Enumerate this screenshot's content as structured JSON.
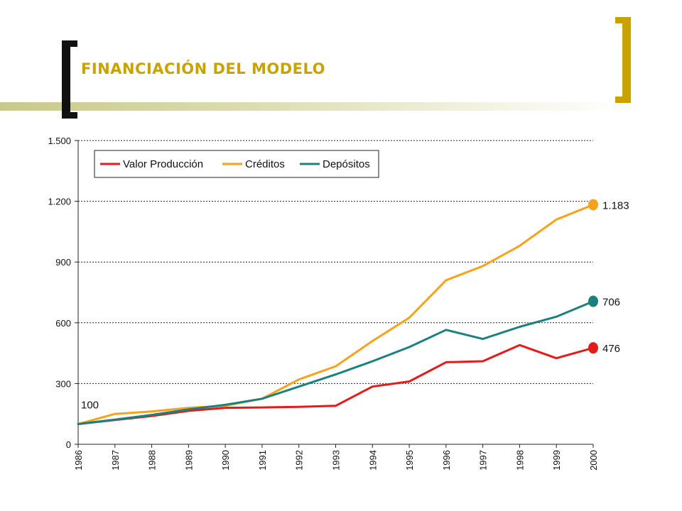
{
  "title": "FINANCIACIÓN DEL MODELO",
  "chart_data": {
    "type": "line",
    "categories": [
      "1986",
      "1987",
      "1988",
      "1989",
      "1990",
      "1991",
      "1992",
      "1993",
      "1994",
      "1995",
      "1996",
      "1997",
      "1998",
      "1999",
      "2000"
    ],
    "ylim": [
      0,
      1500
    ],
    "yticks": [
      0,
      300,
      600,
      900,
      1200,
      1500
    ],
    "ytick_labels": [
      "0",
      "300",
      "600",
      "900",
      "1.200",
      "1.500"
    ],
    "grid": "horizontal dotted",
    "legend_placement": "top-left",
    "series": [
      {
        "name": "Valor Producción",
        "color": "#e31b1b",
        "values": [
          100,
          120,
          140,
          165,
          180,
          182,
          185,
          190,
          285,
          310,
          405,
          410,
          490,
          425,
          476
        ],
        "end_label": "476"
      },
      {
        "name": "Créditos",
        "color": "#f5a31a",
        "values": [
          100,
          150,
          162,
          180,
          190,
          225,
          320,
          385,
          510,
          625,
          810,
          880,
          980,
          1110,
          1183
        ],
        "end_label": "1.183"
      },
      {
        "name": "Depósitos",
        "color": "#1c8080",
        "values": [
          100,
          122,
          145,
          172,
          195,
          225,
          285,
          345,
          410,
          480,
          565,
          520,
          580,
          630,
          706
        ],
        "end_label": "706"
      }
    ],
    "annotations": [
      {
        "category": "1986",
        "value": 100,
        "text": "100"
      }
    ]
  }
}
